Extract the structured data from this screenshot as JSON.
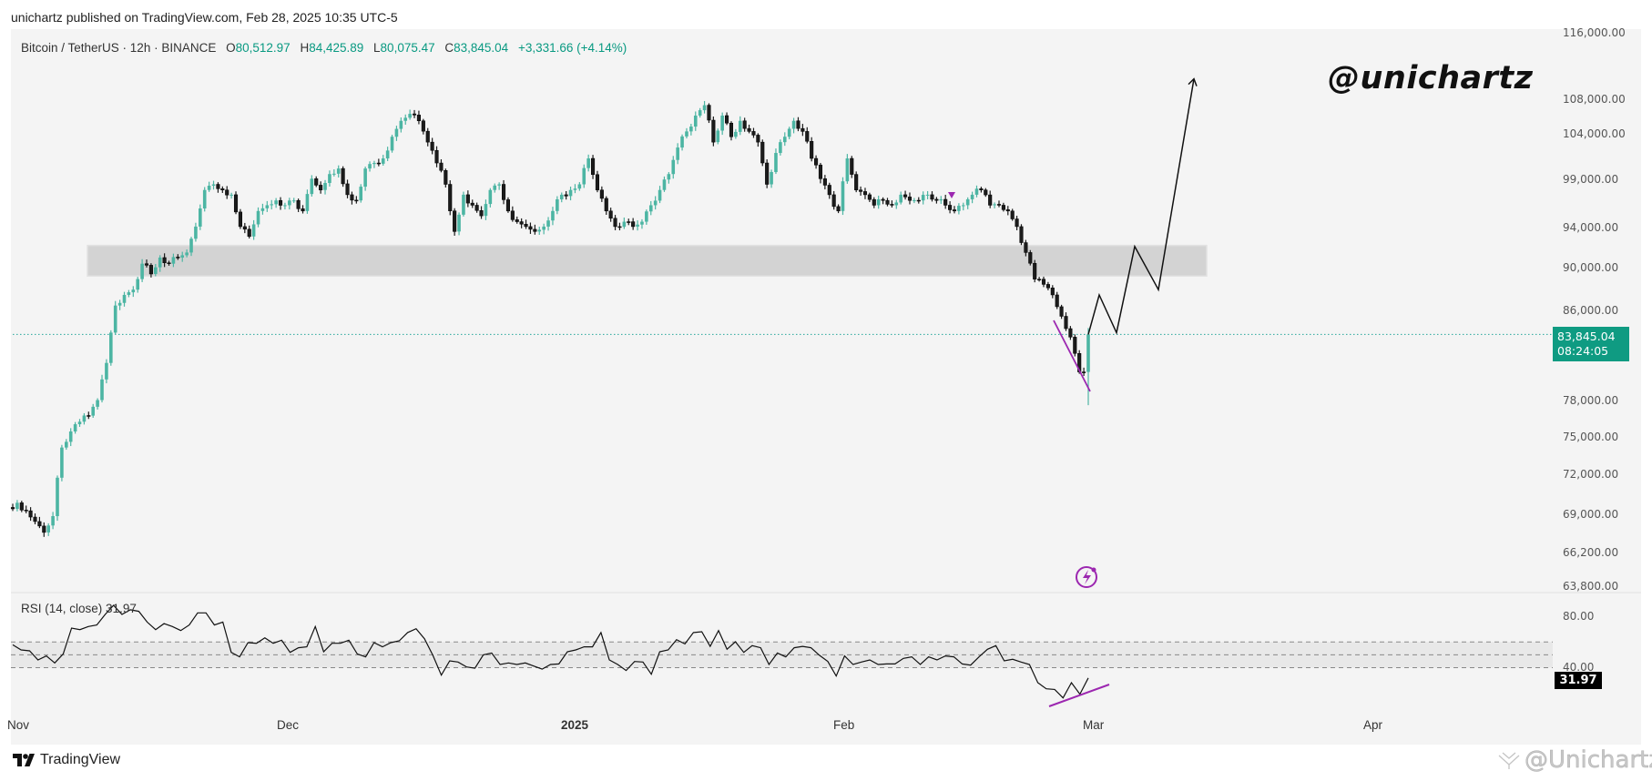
{
  "header": {
    "published": "unichartz published on TradingView.com, Feb 28, 2025 10:35 UTC-5"
  },
  "legend": {
    "symbol": "Bitcoin / TetherUS · 12h · BINANCE",
    "o_label": "O",
    "o": "80,512.97",
    "h_label": "H",
    "h": "84,425.89",
    "l_label": "L",
    "l": "80,075.47",
    "c_label": "C",
    "c": "83,845.04",
    "change": "+3,331.66 (+4.14%)"
  },
  "brand": {
    "handle": "@unichartz",
    "watermark": "@Unichartz",
    "logo_text": "TradingView"
  },
  "current_price": {
    "price": "83,845.04",
    "countdown": "08:24:05"
  },
  "rsi": {
    "legend": "RSI (14, close)",
    "value": "31.97",
    "ticks": [
      "80.00",
      "40.00"
    ]
  },
  "colors": {
    "bull": "#4cb5a3",
    "bear": "#1b1b1b",
    "price_line": "#26a69a",
    "zone": "#d3d3d3",
    "annotation": "#9c27b0",
    "projection": "#111111"
  },
  "chart_data": {
    "type": "candlestick",
    "symbol": "Bitcoin / TetherUS",
    "interval": "12h",
    "exchange": "BINANCE",
    "y_scale": "log",
    "ylim": [
      63800,
      116000
    ],
    "price_ticks": [
      "116,000.00",
      "108,000.00",
      "104,000.00",
      "99,000.00",
      "94,000.00",
      "90,000.00",
      "86,000.00",
      "78,000.00",
      "75,000.00",
      "72,000.00",
      "69,000.00",
      "66,200.00",
      "63,800.00"
    ],
    "x_ticks": [
      "Nov",
      "Dec",
      "2025",
      "Feb",
      "Mar",
      "Apr"
    ],
    "date_range": [
      "Oct 31, 2024",
      "Feb 28, 2025"
    ],
    "daily_closes": [
      69900,
      69300,
      68500,
      67700,
      68900,
      74200,
      75500,
      76300,
      76800,
      78100,
      81300,
      86500,
      87500,
      88000,
      90500,
      89500,
      91100,
      90500,
      91100,
      91600,
      94200,
      98000,
      98600,
      98000,
      97500,
      94200,
      93200,
      95800,
      96400,
      96900,
      96400,
      96900,
      95800,
      99200,
      98000,
      99700,
      100300,
      97500,
      96900,
      100300,
      100900,
      101400,
      103800,
      105600,
      106400,
      105600,
      103200,
      100900,
      98600,
      93700,
      97500,
      96400,
      95300,
      98000,
      98600,
      95800,
      94700,
      94200,
      93700,
      94200,
      95800,
      97500,
      98000,
      98600,
      101400,
      98000,
      95800,
      94200,
      94700,
      94200,
      94700,
      96400,
      98000,
      99700,
      102600,
      104400,
      106200,
      107400,
      103200,
      106200,
      103800,
      105600,
      104400,
      103200,
      98600,
      102000,
      103800,
      105600,
      104400,
      101400,
      99200,
      97500,
      95800,
      101400,
      98000,
      97500,
      96400,
      96900,
      96400,
      97500,
      96900,
      96900,
      97500,
      96900,
      96400,
      95800,
      96400,
      97500,
      98000,
      96400,
      96400,
      95800,
      94200,
      91600,
      89000,
      88500,
      87500,
      85500,
      83600,
      80513,
      83845.04
    ],
    "last_candle": {
      "open": 80512.97,
      "high": 84425.89,
      "low": 80075.47,
      "close": 83845.04
    },
    "support_zone": [
      89300,
      92300
    ],
    "projection_path": [
      83845,
      87500,
      84000,
      92200,
      88000,
      110500
    ],
    "rsi_series": [
      57.8,
      53.8,
      53.1,
      46.0,
      49.1,
      43.7,
      50.7,
      70.8,
      69.6,
      72.0,
      73.2,
      81.4,
      88.5,
      81.4,
      85.0,
      83.8,
      75.5,
      69.6,
      74.3,
      72.0,
      68.9,
      73.2,
      82.6,
      82.6,
      73.2,
      75.5,
      51.9,
      48.4,
      59.5,
      59.0,
      63.2,
      59.0,
      61.4,
      51.9,
      55.5,
      56.2,
      72.0,
      52.4,
      59.0,
      59.0,
      61.4,
      50.7,
      48.4,
      59.5,
      56.2,
      59.5,
      60.9,
      67.3,
      70.3,
      62.5,
      49.6,
      34.2,
      45.3,
      44.4,
      40.6,
      39.6,
      50.0,
      51.4,
      42.5,
      43.7,
      42.5,
      43.7,
      41.3,
      38.9,
      42.5,
      42.9,
      52.4,
      53.8,
      56.2,
      56.2,
      67.3,
      46.0,
      42.5,
      37.8,
      44.8,
      44.4,
      34.9,
      52.4,
      53.8,
      61.8,
      58.5,
      67.3,
      68.0,
      56.6,
      68.9,
      54.3,
      60.2,
      51.9,
      57.1,
      55.5,
      42.5,
      51.4,
      48.4,
      55.5,
      56.6,
      55.5,
      49.6,
      44.8,
      33.5,
      49.1,
      42.5,
      44.4,
      46.0,
      42.5,
      42.9,
      42.9,
      47.2,
      48.4,
      42.5,
      48.4,
      46.0,
      49.1,
      48.4,
      42.9,
      42.0,
      48.4,
      54.3,
      57.1,
      45.3,
      46.5,
      44.4,
      42.5,
      28.3,
      23.6,
      23.1,
      16.5,
      28.3,
      19.4,
      31.97
    ],
    "rsi_bands": [
      60,
      50,
      40
    ],
    "rsi_ylim": [
      0,
      100
    ]
  }
}
